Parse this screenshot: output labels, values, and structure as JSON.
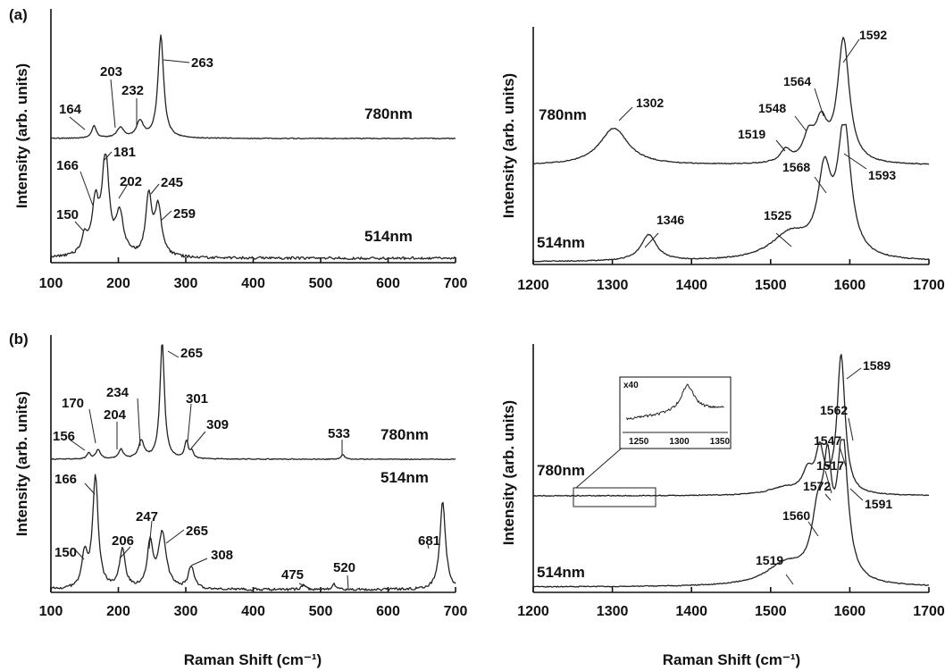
{
  "figure": {
    "panel_labels": [
      "(a)",
      "(b)"
    ]
  },
  "chart_data": [
    {
      "type": "line",
      "id": "a-left",
      "xlabel": "",
      "ylabel": "Intensity (arb. units)",
      "xlim": [
        100,
        700
      ],
      "xticks": [
        100,
        200,
        300,
        400,
        500,
        600,
        700
      ],
      "series": [
        {
          "name": "780nm",
          "peaks": [
            [
              164,
              0.12
            ],
            [
              203,
              0.1
            ],
            [
              232,
              0.16
            ],
            [
              263,
              1.0
            ]
          ],
          "annotations": [
            {
              "text": "164",
              "x": 164
            },
            {
              "text": "203",
              "x": 203
            },
            {
              "text": "232",
              "x": 232
            },
            {
              "text": "263",
              "x": 263
            }
          ]
        },
        {
          "name": "514nm",
          "peaks": [
            [
              150,
              0.18
            ],
            [
              166,
              0.5
            ],
            [
              181,
              1.0
            ],
            [
              202,
              0.4
            ],
            [
              245,
              0.6
            ],
            [
              259,
              0.5
            ]
          ],
          "annotations": [
            {
              "text": "150",
              "x": 150
            },
            {
              "text": "166",
              "x": 166
            },
            {
              "text": "181",
              "x": 181
            },
            {
              "text": "202",
              "x": 202
            },
            {
              "text": "245",
              "x": 245
            },
            {
              "text": "259",
              "x": 259
            }
          ]
        }
      ]
    },
    {
      "type": "line",
      "id": "a-right",
      "xlabel": "",
      "ylabel": "Intensity (arb. units)",
      "xlim": [
        1200,
        1700
      ],
      "xticks": [
        1200,
        1300,
        1400,
        1500,
        1600,
        1700
      ],
      "series": [
        {
          "name": "780nm",
          "peaks": [
            [
              1302,
              0.3
            ],
            [
              1519,
              0.1
            ],
            [
              1548,
              0.2
            ],
            [
              1564,
              0.3
            ],
            [
              1592,
              1.0
            ]
          ],
          "annotations": [
            {
              "text": "1302",
              "x": 1302
            },
            {
              "text": "1519",
              "x": 1519
            },
            {
              "text": "1548",
              "x": 1548
            },
            {
              "text": "1564",
              "x": 1564
            },
            {
              "text": "1592",
              "x": 1592
            }
          ]
        },
        {
          "name": "514nm",
          "peaks": [
            [
              1346,
              0.2
            ],
            [
              1525,
              0.2
            ],
            [
              1568,
              0.6
            ],
            [
              1593,
              1.0
            ]
          ],
          "annotations": [
            {
              "text": "1346",
              "x": 1346
            },
            {
              "text": "1525",
              "x": 1525
            },
            {
              "text": "1568",
              "x": 1568
            },
            {
              "text": "1593",
              "x": 1593
            }
          ]
        }
      ]
    },
    {
      "type": "line",
      "id": "b-left",
      "xlabel": "Raman Shift (cm⁻¹)",
      "ylabel": "Intensity (arb. units)",
      "xlim": [
        100,
        700
      ],
      "xticks": [
        100,
        200,
        300,
        400,
        500,
        600,
        700
      ],
      "series": [
        {
          "name": "780nm",
          "peaks": [
            [
              156,
              0.05
            ],
            [
              170,
              0.08
            ],
            [
              204,
              0.08
            ],
            [
              234,
              0.15
            ],
            [
              265,
              1.0
            ],
            [
              301,
              0.15
            ],
            [
              309,
              0.06
            ],
            [
              533,
              0.04
            ]
          ],
          "annotations": [
            {
              "text": "156",
              "x": 156
            },
            {
              "text": "170",
              "x": 170
            },
            {
              "text": "204",
              "x": 204
            },
            {
              "text": "234",
              "x": 234
            },
            {
              "text": "265",
              "x": 265
            },
            {
              "text": "301",
              "x": 301
            },
            {
              "text": "309",
              "x": 309
            },
            {
              "text": "533",
              "x": 533
            }
          ]
        },
        {
          "name": "514nm",
          "peaks": [
            [
              150,
              0.3
            ],
            [
              166,
              1.0
            ],
            [
              206,
              0.35
            ],
            [
              247,
              0.4
            ],
            [
              265,
              0.5
            ],
            [
              308,
              0.2
            ],
            [
              475,
              0.05
            ],
            [
              520,
              0.05
            ],
            [
              681,
              0.8
            ]
          ],
          "annotations": [
            {
              "text": "150",
              "x": 150
            },
            {
              "text": "166",
              "x": 166
            },
            {
              "text": "206",
              "x": 206
            },
            {
              "text": "247",
              "x": 247
            },
            {
              "text": "265",
              "x": 265
            },
            {
              "text": "308",
              "x": 308
            },
            {
              "text": "475",
              "x": 475
            },
            {
              "text": "520",
              "x": 520
            },
            {
              "text": "681",
              "x": 681
            }
          ]
        }
      ]
    },
    {
      "type": "line",
      "id": "b-right",
      "xlabel": "Raman Shift (cm⁻¹)",
      "ylabel": "Intensity (arb. units)",
      "xlim": [
        1200,
        1700
      ],
      "xticks": [
        1200,
        1300,
        1400,
        1500,
        1600,
        1700
      ],
      "inset": {
        "label": "x40",
        "xlim": [
          1230,
          1360
        ],
        "xticks": [
          1250,
          1300,
          1350
        ],
        "peak": 1310
      },
      "series": [
        {
          "name": "780nm",
          "peaks": [
            [
              1517,
              0.05
            ],
            [
              1547,
              0.15
            ],
            [
              1562,
              0.3
            ],
            [
              1589,
              1.0
            ]
          ],
          "annotations": [
            {
              "text": "1517",
              "x": 1517
            },
            {
              "text": "1547",
              "x": 1547
            },
            {
              "text": "1562",
              "x": 1562
            },
            {
              "text": "1589",
              "x": 1589
            }
          ]
        },
        {
          "name": "514nm",
          "peaks": [
            [
              1519,
              0.15
            ],
            [
              1560,
              0.45
            ],
            [
              1572,
              0.65
            ],
            [
              1591,
              1.0
            ]
          ],
          "annotations": [
            {
              "text": "1519",
              "x": 1519
            },
            {
              "text": "1560",
              "x": 1560
            },
            {
              "text": "1572",
              "x": 1572
            },
            {
              "text": "1591",
              "x": 1591
            }
          ]
        }
      ]
    }
  ]
}
